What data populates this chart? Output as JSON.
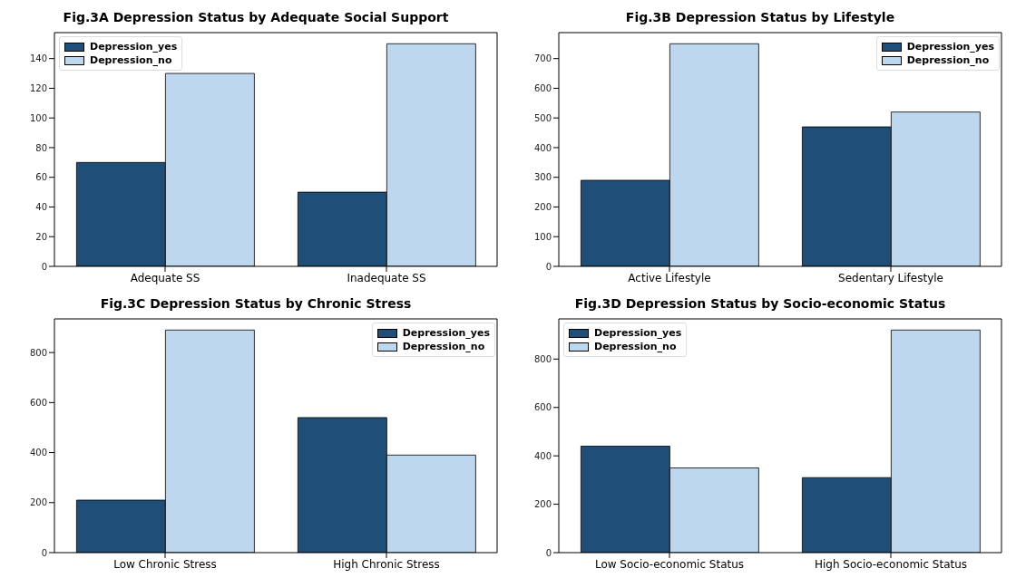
{
  "chart_data": [
    {
      "type": "bar",
      "title": "Fig.3A Depression Status by Adequate Social Support",
      "categories": [
        "Adequate SS",
        "Inadequate SS"
      ],
      "series": [
        {
          "name": "Depression_yes",
          "color": "#1f4e79",
          "values": [
            70,
            50
          ]
        },
        {
          "name": "Depression_no",
          "color": "#bdd7ee",
          "values": [
            130,
            150
          ]
        }
      ],
      "ylim": [
        0,
        157.5
      ],
      "yticks": [
        0,
        20,
        40,
        60,
        80,
        100,
        120,
        140
      ],
      "grid": false,
      "legend": "top left"
    },
    {
      "type": "bar",
      "title": "Fig.3B Depression Status by Lifestyle",
      "categories": [
        "Active Lifestyle",
        "Sedentary Lifestyle"
      ],
      "series": [
        {
          "name": "Depression_yes",
          "color": "#1f4e79",
          "values": [
            290,
            470
          ]
        },
        {
          "name": "Depression_no",
          "color": "#bdd7ee",
          "values": [
            750,
            520
          ]
        }
      ],
      "ylim": [
        0,
        787.5
      ],
      "yticks": [
        0,
        100,
        200,
        300,
        400,
        500,
        600,
        700
      ],
      "grid": false,
      "legend": "top right"
    },
    {
      "type": "bar",
      "title": "Fig.3C Depression Status by Chronic Stress",
      "categories": [
        "Low Chronic Stress",
        "High Chronic Stress"
      ],
      "series": [
        {
          "name": "Depression_yes",
          "color": "#1f4e79",
          "values": [
            210,
            540
          ]
        },
        {
          "name": "Depression_no",
          "color": "#bdd7ee",
          "values": [
            890,
            390
          ]
        }
      ],
      "ylim": [
        0,
        934.5
      ],
      "yticks": [
        0,
        200,
        400,
        600,
        800
      ],
      "grid": false,
      "legend": "top right"
    },
    {
      "type": "bar",
      "title": "Fig.3D Depression Status by Socio-economic Status",
      "categories": [
        "Low Socio-economic Status",
        "High Socio-economic Status"
      ],
      "series": [
        {
          "name": "Depression_yes",
          "color": "#1f4e79",
          "values": [
            440,
            310
          ]
        },
        {
          "name": "Depression_no",
          "color": "#bdd7ee",
          "values": [
            350,
            920
          ]
        }
      ],
      "ylim": [
        0,
        966
      ],
      "yticks": [
        0,
        200,
        400,
        600,
        800
      ],
      "grid": false,
      "legend": "top left"
    }
  ]
}
